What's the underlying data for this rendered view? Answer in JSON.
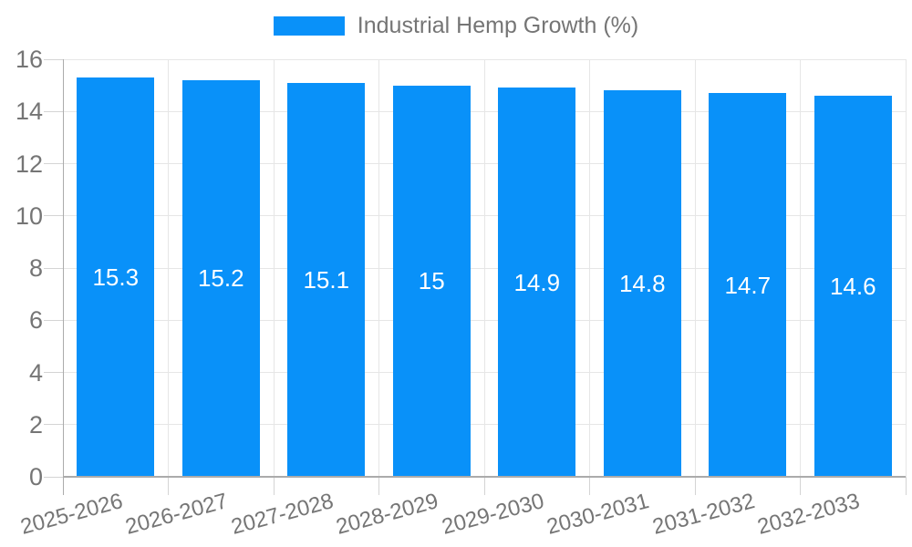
{
  "legend": {
    "label": "Industrial Hemp Growth (%)"
  },
  "chart_data": {
    "type": "bar",
    "title": "Industrial Hemp Growth (%)",
    "categories": [
      "2025-2026",
      "2026-2027",
      "2027-2028",
      "2028-2029",
      "2029-2030",
      "2030-2031",
      "2031-2032",
      "2032-2033"
    ],
    "values": [
      15.3,
      15.2,
      15.1,
      15,
      14.9,
      14.8,
      14.7,
      14.6
    ],
    "value_labels": [
      "15.3",
      "15.2",
      "15.1",
      "15",
      "14.9",
      "14.8",
      "14.7",
      "14.6"
    ],
    "xlabel": "",
    "ylabel": "",
    "ylim": [
      0,
      16
    ],
    "ytick_step": 2,
    "yticks": [
      0,
      2,
      4,
      6,
      8,
      10,
      12,
      14,
      16
    ],
    "grid": true,
    "legend_position": "top",
    "x_label_rotation_deg": -15,
    "colors": {
      "bar": "#0991F9",
      "value_label": "#ffffff",
      "axis_text": "#757575",
      "grid": "#E6E6E6",
      "axis_line": "#ABABAB",
      "tick": "#D4D4D4",
      "background": "#ffffff"
    }
  }
}
